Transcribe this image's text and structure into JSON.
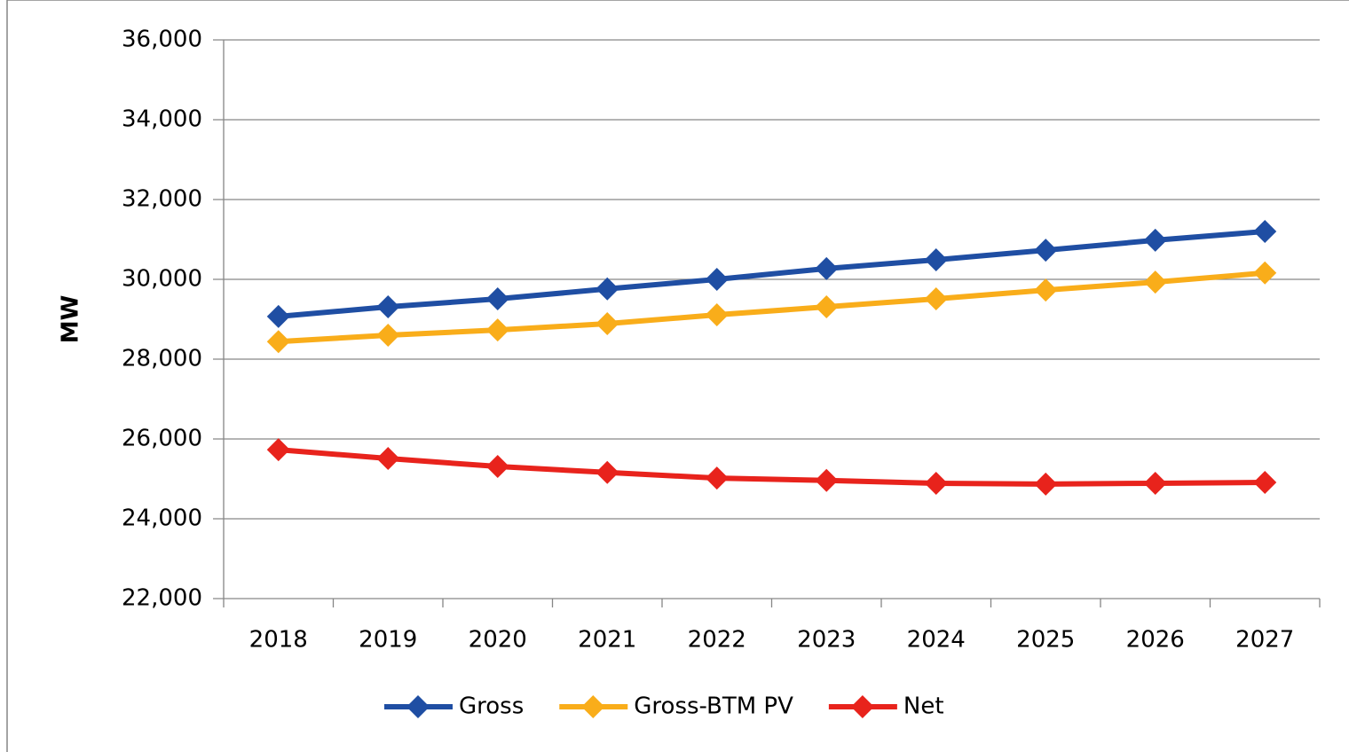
{
  "chart_data": {
    "type": "line",
    "y_label": "MW",
    "categories": [
      "2018",
      "2019",
      "2020",
      "2021",
      "2022",
      "2023",
      "2024",
      "2025",
      "2026",
      "2027"
    ],
    "series": [
      {
        "name": "Gross",
        "color": "#1f4ea3",
        "values": [
          29070,
          29310,
          29510,
          29760,
          30000,
          30270,
          30490,
          30730,
          30980,
          31200
        ]
      },
      {
        "name": "Gross-BTM PV",
        "color": "#f9ad1a",
        "values": [
          28440,
          28600,
          28730,
          28890,
          29110,
          29310,
          29510,
          29730,
          29930,
          30160
        ]
      },
      {
        "name": "Net",
        "color": "#e8231c",
        "values": [
          25730,
          25510,
          25310,
          25160,
          25020,
          24960,
          24890,
          24870,
          24890,
          24910
        ]
      }
    ],
    "ylim": [
      22000,
      36000
    ],
    "yticks": [
      {
        "value": 22000,
        "label": "22,000"
      },
      {
        "value": 24000,
        "label": "24,000"
      },
      {
        "value": 26000,
        "label": "26,000"
      },
      {
        "value": 28000,
        "label": "28,000"
      },
      {
        "value": 30000,
        "label": "30,000"
      },
      {
        "value": 32000,
        "label": "32,000"
      },
      {
        "value": 34000,
        "label": "34,000"
      },
      {
        "value": 36000,
        "label": "36,000"
      }
    ],
    "grid": true,
    "legend": "bottom"
  }
}
